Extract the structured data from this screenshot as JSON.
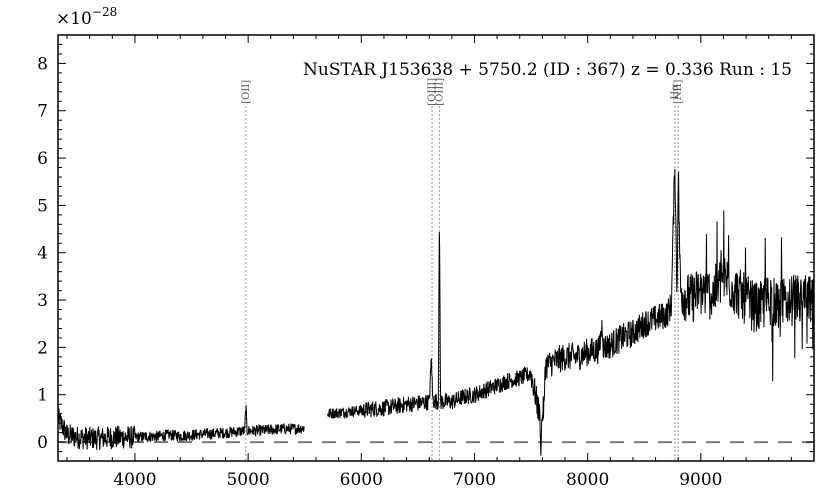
{
  "chart_data": {
    "type": "line",
    "title": "NuSTAR J153638 + 5750.2 (ID : 367)   z = 0.336   Run : 15",
    "y_multiplier_label": "×10",
    "y_multiplier_exponent": "−28",
    "xlabel": "",
    "ylabel": "",
    "xlim": [
      3320,
      10000
    ],
    "ylim": [
      -0.4,
      8.6
    ],
    "x_ticks": [
      4000,
      5000,
      6000,
      7000,
      8000,
      9000
    ],
    "y_ticks": [
      0,
      1,
      2,
      3,
      4,
      5,
      6,
      7,
      8
    ],
    "zero_line": {
      "y": 0,
      "style": "dashed",
      "color": "#777777"
    },
    "emission_lines": [
      {
        "label": "[OII]",
        "wavelength": 4980
      },
      {
        "label": "[OIII]",
        "wavelength": 6625
      },
      {
        "label": "[OIII]",
        "wavelength": 6690
      },
      {
        "label": "Hα",
        "wavelength": 8770
      },
      {
        "label": "[NII]",
        "wavelength": 8800
      }
    ],
    "series": [
      {
        "color": "#000000",
        "x": [
          3320,
          3400,
          3500,
          3600,
          3700,
          3800,
          3900,
          4000,
          4100,
          4200,
          4300,
          4400,
          4500,
          4600,
          4700,
          4800,
          4900,
          4970,
          4980,
          4990,
          5100,
          5200,
          5300,
          5400,
          5500,
          5700,
          5800,
          5900,
          6000,
          6100,
          6200,
          6300,
          6400,
          6500,
          6600,
          6620,
          6630,
          6640,
          6680,
          6690,
          6700,
          6800,
          6900,
          7000,
          7100,
          7200,
          7300,
          7400,
          7500,
          7580,
          7600,
          7620,
          7700,
          7800,
          7900,
          8000,
          8100,
          8130,
          8140,
          8150,
          8200,
          8300,
          8400,
          8500,
          8600,
          8700,
          8740,
          8770,
          8790,
          8800,
          8820,
          8900,
          9000,
          9100,
          9200,
          9300,
          9400,
          9500,
          9600,
          9700,
          9800,
          9900,
          10000
        ],
        "values": [
          0.5,
          0.15,
          0.1,
          0.08,
          0.08,
          0.1,
          0.1,
          0.1,
          0.12,
          0.12,
          0.15,
          0.13,
          0.15,
          0.17,
          0.18,
          0.2,
          0.22,
          0.24,
          0.8,
          0.24,
          0.24,
          0.26,
          0.28,
          0.28,
          0.3,
          0.6,
          0.62,
          0.65,
          0.67,
          0.7,
          0.72,
          0.75,
          0.8,
          0.82,
          0.85,
          1.8,
          0.9,
          0.88,
          0.85,
          4.8,
          0.85,
          0.85,
          0.95,
          1.0,
          1.1,
          1.2,
          1.3,
          1.35,
          1.45,
          0.5,
          1.4,
          1.6,
          1.7,
          1.8,
          1.8,
          1.9,
          1.95,
          2.5,
          2.0,
          2.0,
          2.05,
          2.2,
          2.3,
          2.5,
          2.6,
          2.7,
          2.9,
          6.0,
          3.0,
          5.8,
          3.2,
          3.0,
          3.2,
          3.1,
          3.5,
          3.2,
          3.0,
          2.8,
          3.0,
          2.9,
          3.0,
          3.0,
          3.0
        ]
      }
    ]
  }
}
